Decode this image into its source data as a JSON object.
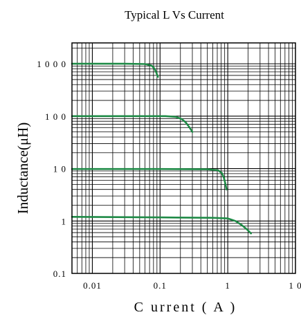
{
  "chart_data": {
    "type": "line",
    "title": "Typical L Vs Current",
    "xlabel": "C urrent ( A )",
    "ylabel": "Inductance(μH)",
    "x_scale": "log",
    "y_scale": "log",
    "xlim": [
      0.005,
      10
    ],
    "ylim": [
      0.1,
      2500
    ],
    "grid": true,
    "x_ticks": [
      {
        "value": 0.01,
        "label": "0.01"
      },
      {
        "value": 0.1,
        "label": "0.1"
      },
      {
        "value": 1,
        "label": "1"
      },
      {
        "value": 10,
        "label": "1 0"
      }
    ],
    "y_ticks": [
      {
        "value": 0.1,
        "label": "0.1"
      },
      {
        "value": 1,
        "label": "1"
      },
      {
        "value": 10,
        "label": "1 0"
      },
      {
        "value": 100,
        "label": "1 0 0"
      },
      {
        "value": 1000,
        "label": "1 0 0 0"
      }
    ],
    "series_color": "#1e8a46",
    "series": [
      {
        "x": [
          0.005,
          0.03,
          0.06,
          0.075,
          0.082,
          0.088,
          0.093
        ],
        "y": [
          1000,
          1000,
          990,
          920,
          820,
          680,
          560
        ]
      },
      {
        "x": [
          0.005,
          0.05,
          0.12,
          0.17,
          0.21,
          0.24,
          0.27,
          0.3
        ],
        "y": [
          100,
          100,
          100,
          97,
          88,
          76,
          62,
          50
        ]
      },
      {
        "x": [
          0.005,
          0.1,
          0.5,
          0.72,
          0.82,
          0.88,
          0.92,
          0.96
        ],
        "y": [
          9.8,
          9.8,
          9.7,
          9.3,
          8.2,
          6.6,
          5.2,
          4.0
        ]
      },
      {
        "x": [
          0.005,
          0.1,
          0.6,
          1.0,
          1.3,
          1.6,
          1.9,
          2.2
        ],
        "y": [
          1.2,
          1.17,
          1.15,
          1.12,
          1.0,
          0.84,
          0.7,
          0.58
        ]
      }
    ]
  }
}
